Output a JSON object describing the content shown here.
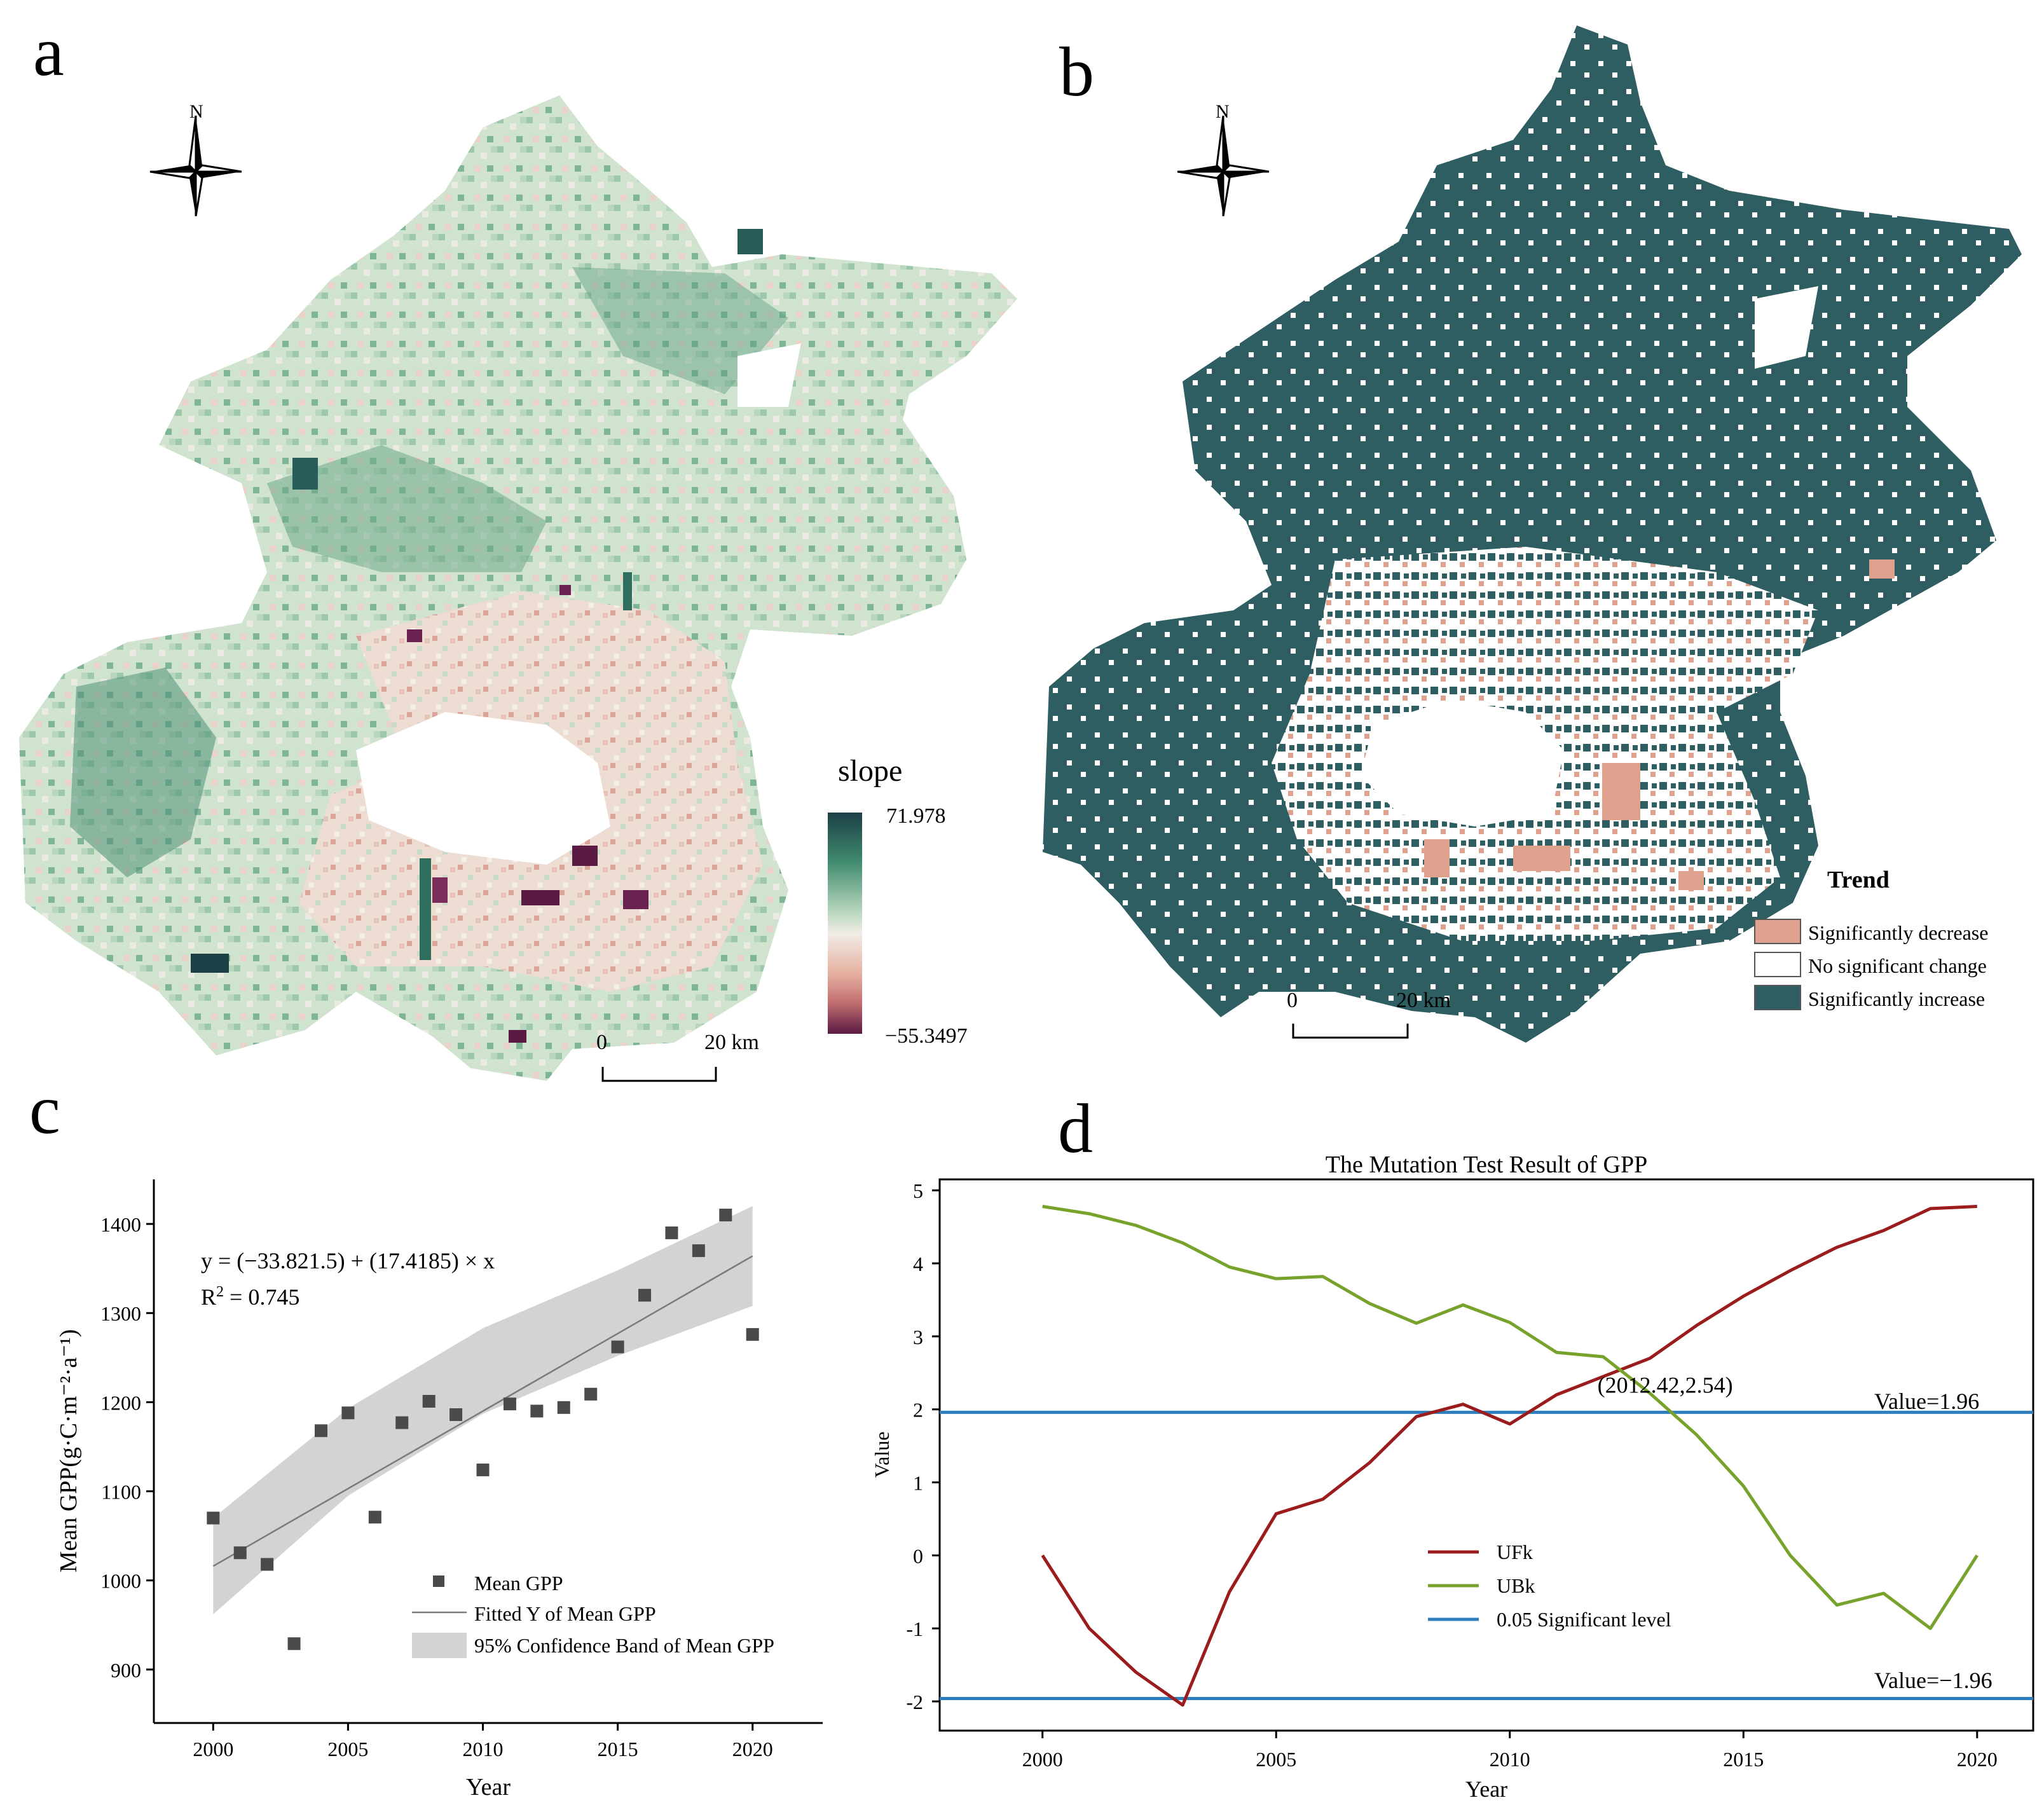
{
  "panels": {
    "a": {
      "label": "a",
      "north": "N",
      "legend_title": "slope",
      "legend_max": "71.978",
      "legend_min": "−55.3497",
      "colors": {
        "high": "#1c3f46",
        "mid_high": "#3f8a6e",
        "light": "#b9d8bf",
        "neutral": "#f1ece6",
        "low_light": "#e6b3a3",
        "low": "#c26f70",
        "lowest": "#5a1a44"
      },
      "scale_start": "0",
      "scale_end": "20 km"
    },
    "b": {
      "label": "b",
      "north": "N",
      "legend_title": "Trend",
      "legend_items": [
        {
          "label": "Significantly decrease",
          "color": "#dda18d"
        },
        {
          "label": "No significant change",
          "color": "#ffffff"
        },
        {
          "label": "Significantly increase",
          "color": "#2e5e61"
        }
      ],
      "scale_start": "0",
      "scale_end": "20 km"
    },
    "c": {
      "label": "c"
    },
    "d": {
      "label": "d"
    }
  },
  "chart_data": [
    {
      "id": "c",
      "type": "scatter",
      "xlabel": "Year",
      "ylabel": "Mean GPP(g·C·m⁻²·a⁻¹)",
      "xlim": [
        1997.8,
        2022.6
      ],
      "ylim": [
        840,
        1450
      ],
      "xticks": [
        2000,
        2005,
        2010,
        2015,
        2020
      ],
      "yticks": [
        900,
        1000,
        1100,
        1200,
        1300,
        1400
      ],
      "x": [
        2000,
        2001,
        2002,
        2003,
        2004,
        2005,
        2006,
        2007,
        2008,
        2009,
        2010,
        2011,
        2012,
        2013,
        2014,
        2015,
        2016,
        2017,
        2018,
        2019,
        2020
      ],
      "y": [
        1070,
        1031,
        1018,
        929,
        1168,
        1188,
        1071,
        1177,
        1201,
        1186,
        1124,
        1198,
        1190,
        1194,
        1209,
        1262,
        1320,
        1390,
        1370,
        1410,
        1276
      ],
      "fit": {
        "x": [
          2000,
          2020
        ],
        "y": [
          1016,
          1364
        ]
      },
      "band": {
        "x": [
          2000,
          2005,
          2010,
          2015,
          2020
        ],
        "upper": [
          1070,
          1193,
          1283,
          1348,
          1420
        ],
        "lower": [
          962,
          1095,
          1187,
          1252,
          1308
        ]
      },
      "equation": "y = (−33.821.5) + (17.4185) × x",
      "r2_label": "R",
      "r2_sup": "2",
      "r2_value": " = 0.745",
      "legend": [
        "Mean GPP",
        "Fitted Y of Mean GPP",
        "95% Confidence Band of Mean GPP"
      ],
      "colors": {
        "points": "#4a4a4a",
        "fit": "#7a7a7a",
        "band": "#d3d3d3"
      }
    },
    {
      "id": "d",
      "type": "line",
      "title": "The Mutation Test Result of GPP",
      "xlabel": "Year",
      "ylabel": "Value",
      "xlim": [
        1997.8,
        2021.2
      ],
      "ylim": [
        -2.4,
        5.15
      ],
      "xticks": [
        2000,
        2005,
        2010,
        2015,
        2020
      ],
      "yticks": [
        -2,
        -1,
        0,
        1,
        2,
        3,
        4,
        5
      ],
      "x": [
        2000,
        2001,
        2002,
        2003,
        2004,
        2005,
        2006,
        2007,
        2008,
        2009,
        2010,
        2011,
        2012,
        2013,
        2014,
        2015,
        2016,
        2017,
        2018,
        2019,
        2020
      ],
      "series": [
        {
          "name": "UFk",
          "color": "#9b1c1c",
          "values": [
            0,
            -1.0,
            -1.6,
            -2.05,
            -0.5,
            0.57,
            0.77,
            1.27,
            1.9,
            2.07,
            1.8,
            2.2,
            2.45,
            2.7,
            3.15,
            3.55,
            3.9,
            4.22,
            4.45,
            4.75,
            4.78
          ]
        },
        {
          "name": "UBk",
          "color": "#77a22c",
          "values": [
            4.78,
            4.68,
            4.52,
            4.28,
            3.95,
            3.79,
            3.82,
            3.45,
            3.18,
            3.43,
            3.19,
            2.78,
            2.72,
            2.22,
            1.65,
            0.95,
            0.0,
            -0.68,
            -0.52,
            -1.0,
            0.0
          ]
        }
      ],
      "hlines": [
        {
          "value": 1.96,
          "label": "Value=1.96",
          "color": "#2f7fbf"
        },
        {
          "value": -1.96,
          "label": "Value=−1.96",
          "color": "#2f7fbf"
        }
      ],
      "annotation": {
        "text": "(2012.42,2.54)",
        "x": 2012.42,
        "y": 2.54
      },
      "legend": [
        "UFk",
        "UBk",
        "0.05  Significant level"
      ]
    }
  ]
}
